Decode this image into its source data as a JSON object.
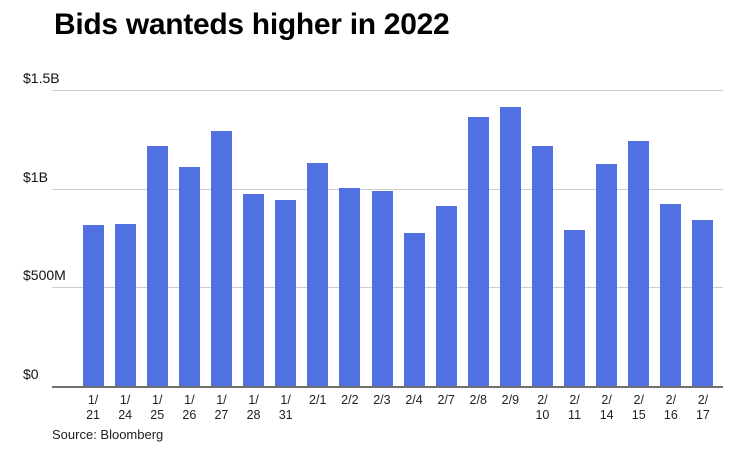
{
  "header": {
    "title": "Bids wanteds higher in 2022"
  },
  "footer": {
    "source": "Source: Bloomberg"
  },
  "colors": {
    "background": "#ffffff",
    "bar": "#5171e3",
    "gridline": "#cdcdcd",
    "axis_line": "#707070",
    "title": "#000000",
    "tick_label": "#111111",
    "x_label": "#222222",
    "source": "#1e1e1e"
  },
  "chart_data": {
    "type": "bar",
    "title": "Bids wanteds higher in 2022",
    "categories": [
      "1/21",
      "1/24",
      "1/25",
      "1/26",
      "1/27",
      "1/28",
      "1/31",
      "2/1",
      "2/2",
      "2/3",
      "2/4",
      "2/7",
      "2/8",
      "2/9",
      "2/10",
      "2/11",
      "2/14",
      "2/15",
      "2/16",
      "2/17"
    ],
    "values": [
      815,
      820,
      1215,
      1110,
      1290,
      975,
      945,
      1130,
      1005,
      990,
      775,
      910,
      1365,
      1415,
      1215,
      790,
      1125,
      1240,
      925,
      840
    ],
    "value_unit": "USD millions",
    "xlabel": "",
    "ylabel": "",
    "ylim": [
      0,
      1500
    ],
    "y_ticks": [
      {
        "value": 0,
        "label": "$0"
      },
      {
        "value": 500,
        "label": "$500M"
      },
      {
        "value": 1000,
        "label": "$1B"
      },
      {
        "value": 1500,
        "label": "$1.5B"
      }
    ],
    "grid": true,
    "legend": "none",
    "source": "Source: Bloomberg"
  }
}
